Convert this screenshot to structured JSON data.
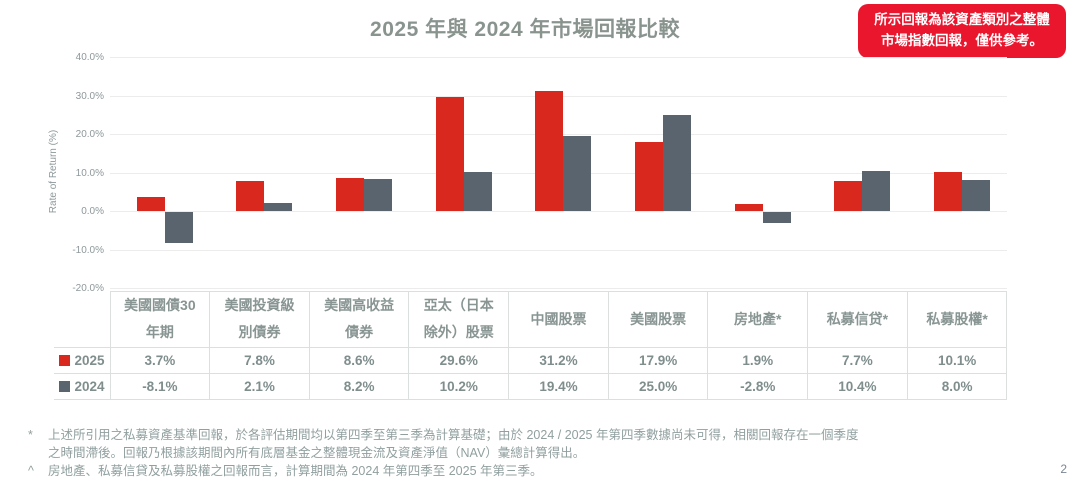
{
  "title": "2025 年與 2024 年市場回報比較",
  "badge": {
    "line1": "所示回報為該資產類別之整體",
    "line2": "市場指數回報，僅供參考。",
    "bg_color": "#e9162e"
  },
  "chart_data": {
    "type": "bar",
    "title": "2025 年與 2024 年市場回報比較",
    "xlabel": "",
    "ylabel": "Rate of Return (%)",
    "ylim": [
      -20,
      40
    ],
    "yticks": [
      40,
      30,
      20,
      10,
      0,
      -10,
      -20
    ],
    "grid": true,
    "legend_position": "table-left-rows",
    "categories": [
      "美國國債30年期",
      "美國投資級別債券",
      "美國高收益債券",
      "亞太（日本除外）股票",
      "中國股票",
      "美國股票",
      "房地產*",
      "私募信贷*",
      "私募股權*"
    ],
    "series": [
      {
        "name": "2025",
        "color": "#d9291e",
        "values": [
          3.7,
          7.8,
          8.6,
          29.6,
          31.2,
          17.9,
          1.9,
          7.7,
          10.1
        ]
      },
      {
        "name": "2024",
        "color": "#5a646e",
        "values": [
          -8.1,
          2.1,
          8.2,
          10.2,
          19.4,
          25.0,
          -2.8,
          10.4,
          8.0
        ]
      }
    ]
  },
  "table": {
    "headers": [
      "美國國債30\n年期",
      "美國投資級\n別債券",
      "美國高收益\n債券",
      "亞太（日本\n除外）股票",
      "中國股票",
      "美國股票",
      "房地產*",
      "私募信贷*",
      "私募股權*"
    ]
  },
  "footnotes": [
    {
      "marker": "*",
      "lines": [
        "上述所引用之私募資產基準回報，於各評估期間均以第四季至第三季為計算基礎；由於 2024 / 2025 年第四季數據尚未可得，相關回報存在一個季度",
        "之時間滯後。回報乃根據該期間內所有底層基金之整體現金流及資產淨值（NAV）彙總計算得出。"
      ]
    },
    {
      "marker": "^",
      "lines": [
        "房地產、私募信貸及私募股權之回報而言，計算期間為 2024 年第四季至 2025 年第三季。"
      ]
    }
  ],
  "page_number": "2"
}
